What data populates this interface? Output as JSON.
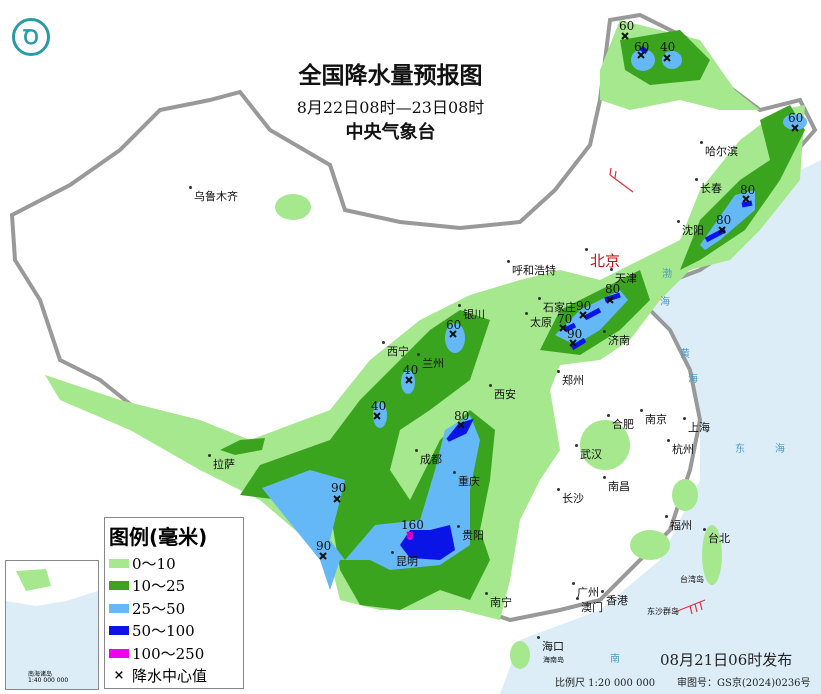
{
  "header": {
    "title": "全国降水量预报图",
    "period": "8月22日08时—23日08时",
    "issuer": "中央气象台"
  },
  "legend": {
    "title": "图例(毫米)",
    "items": [
      {
        "label": "0～10",
        "color": "#a6e88e"
      },
      {
        "label": "10～25",
        "color": "#3ba41e"
      },
      {
        "label": "25～50",
        "color": "#64b8f5"
      },
      {
        "label": "50～100",
        "color": "#0a14e6"
      },
      {
        "label": "100～250",
        "color": "#f000f0"
      }
    ],
    "center_label": "降水中心值"
  },
  "cities": [
    {
      "name": "乌鲁木齐"
    },
    {
      "name": "哈尔滨"
    },
    {
      "name": "长春"
    },
    {
      "name": "沈阳"
    },
    {
      "name": "北京"
    },
    {
      "name": "天津"
    },
    {
      "name": "呼和浩特"
    },
    {
      "name": "石家庄"
    },
    {
      "name": "太原"
    },
    {
      "name": "济南"
    },
    {
      "name": "银川"
    },
    {
      "name": "西宁"
    },
    {
      "name": "兰州"
    },
    {
      "name": "郑州"
    },
    {
      "name": "西安"
    },
    {
      "name": "拉萨"
    },
    {
      "name": "成都"
    },
    {
      "name": "重庆"
    },
    {
      "name": "贵阳"
    },
    {
      "name": "昆明"
    },
    {
      "name": "南宁"
    },
    {
      "name": "长沙"
    },
    {
      "name": "武汉"
    },
    {
      "name": "南昌"
    },
    {
      "name": "合肥"
    },
    {
      "name": "南京"
    },
    {
      "name": "上海"
    },
    {
      "name": "杭州"
    },
    {
      "name": "福州"
    },
    {
      "name": "台北"
    },
    {
      "name": "广州"
    },
    {
      "name": "澳门"
    },
    {
      "name": "香港"
    },
    {
      "name": "海口"
    }
  ],
  "precip_centers": [
    "60",
    "60",
    "40",
    "60",
    "80",
    "80",
    "80",
    "90",
    "70",
    "90",
    "60",
    "40",
    "40",
    "80",
    "90",
    "90",
    "160"
  ],
  "sea_labels": {
    "east_sea": "东",
    "east_sea2": "海",
    "yellow_sea": "黄",
    "yellow_sea2": "海",
    "bohai": "渤",
    "bohai2": "海",
    "south": "南",
    "taiwan_island": "台湾岛",
    "dongsha": "东沙群岛",
    "hainan": "海南岛"
  },
  "footer": {
    "release": "08月21日06时发布",
    "scale": "比例尺 1:20 000 000",
    "map_no": "审图号：GS京(2024)0236号"
  },
  "inset": {
    "label": "南海诸岛",
    "scale": "1:40 000 000"
  }
}
